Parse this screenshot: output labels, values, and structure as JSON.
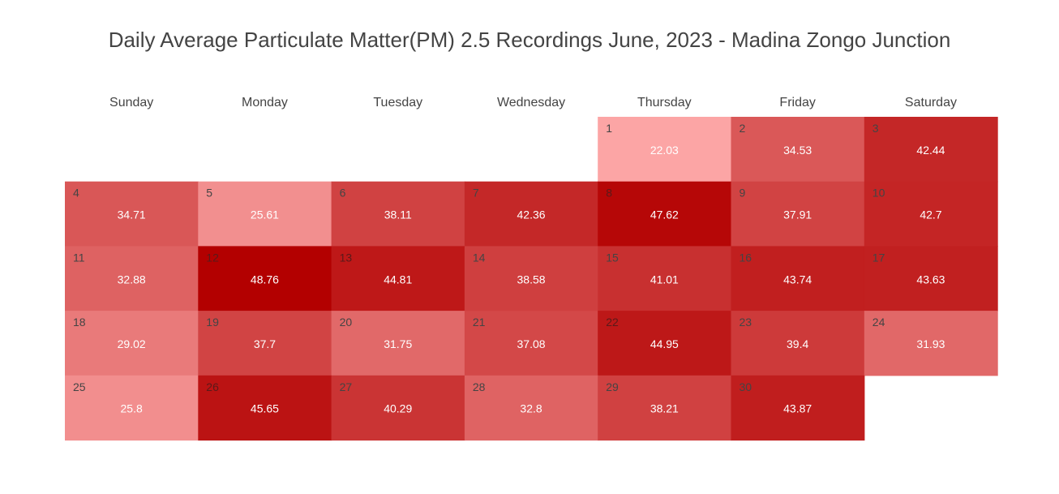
{
  "chart_data": {
    "type": "heatmap",
    "title": "Daily Average Particulate Matter(PM) 2.5 Recordings June, 2023 - Madina Zongo Junction",
    "weekdays": [
      "Sunday",
      "Monday",
      "Tuesday",
      "Wednesday",
      "Thursday",
      "Friday",
      "Saturday"
    ],
    "first_weekday_index": 4,
    "days": [
      1,
      2,
      3,
      4,
      5,
      6,
      7,
      8,
      9,
      10,
      11,
      12,
      13,
      14,
      15,
      16,
      17,
      18,
      19,
      20,
      21,
      22,
      23,
      24,
      25,
      26,
      27,
      28,
      29,
      30
    ],
    "values": [
      22.03,
      34.53,
      42.44,
      34.71,
      25.61,
      38.11,
      42.36,
      47.62,
      37.91,
      42.7,
      32.88,
      48.76,
      44.81,
      38.58,
      41.01,
      43.74,
      43.63,
      29.02,
      37.7,
      31.75,
      37.08,
      44.95,
      39.4,
      31.93,
      25.8,
      45.65,
      40.29,
      32.8,
      38.21,
      43.87
    ],
    "color_scale": [
      "#fca5a5",
      "#b30000"
    ]
  }
}
